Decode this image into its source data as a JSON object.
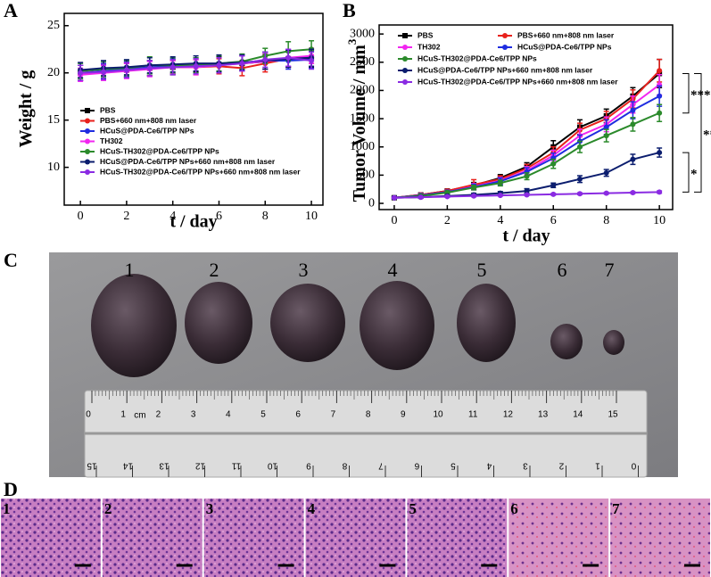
{
  "chart_data": [
    {
      "type": "line",
      "panel_label": "A",
      "x_label": "t / day",
      "y_label": "Weight / g",
      "x": [
        0,
        1,
        2,
        3,
        4,
        5,
        6,
        7,
        8,
        9,
        10
      ],
      "xlim": [
        -0.7,
        10.5
      ],
      "xticks": [
        0,
        2,
        4,
        6,
        8,
        10
      ],
      "ylim": [
        6,
        26.3
      ],
      "yticks": [
        10,
        15,
        20,
        25
      ],
      "series": [
        {
          "name": "PBS",
          "color": "#000000",
          "values": [
            20,
            20.2,
            20.3,
            20.5,
            20.6,
            20.8,
            20.9,
            21,
            21.2,
            21.5,
            21.5
          ],
          "errors": [
            0.8,
            0.8,
            0.7,
            0.8,
            0.8,
            0.7,
            0.8,
            0.8,
            0.8,
            0.9,
            0.9
          ]
        },
        {
          "name": "PBS+660 nm+808 nm laser",
          "color": "#e8211c",
          "values": [
            20,
            20.1,
            20.3,
            20.5,
            20.6,
            20.6,
            20.7,
            20.5,
            21,
            21.5,
            21.8
          ],
          "errors": [
            0.8,
            0.7,
            0.8,
            0.8,
            0.7,
            0.8,
            0.8,
            0.8,
            0.9,
            0.9,
            0.8
          ]
        },
        {
          "name": "HCuS@PDA-Ce6/TPP NPs",
          "color": "#1f2de0",
          "values": [
            20,
            20.2,
            20.4,
            20.6,
            20.7,
            20.8,
            21,
            21.1,
            21.3,
            21.3,
            21.4
          ],
          "errors": [
            0.8,
            0.8,
            0.8,
            0.7,
            0.8,
            0.8,
            0.8,
            0.8,
            0.9,
            0.9,
            0.9
          ]
        },
        {
          "name": "TH302",
          "color": "#f226f0",
          "values": [
            19.8,
            20,
            20.2,
            20.4,
            20.6,
            20.6,
            20.8,
            21,
            21.2,
            21.6,
            21.8
          ],
          "errors": [
            0.7,
            0.8,
            0.8,
            0.8,
            0.7,
            0.8,
            0.8,
            0.8,
            0.8,
            0.9,
            0.8
          ]
        },
        {
          "name": "HCuS-TH302@PDA-Ce6/TPP NPs",
          "color": "#2b8a2b",
          "values": [
            20.2,
            20.4,
            20.5,
            20.8,
            20.8,
            20.8,
            21,
            21.2,
            21.8,
            22.3,
            22.5
          ],
          "errors": [
            0.8,
            0.8,
            0.8,
            0.9,
            0.8,
            0.8,
            0.8,
            0.8,
            0.8,
            1,
            0.9
          ]
        },
        {
          "name": "HCuS@PDA-Ce6/TPP NPs+660 nm+808 nm laser",
          "color": "#0b1d6e",
          "values": [
            20.3,
            20.5,
            20.6,
            20.8,
            20.9,
            21,
            21,
            21.1,
            21.3,
            21.5,
            21.6
          ],
          "errors": [
            0.8,
            0.8,
            0.8,
            0.8,
            0.8,
            0.8,
            0.9,
            0.8,
            0.9,
            0.9,
            0.9
          ]
        },
        {
          "name": "HCuS-TH302@PDA-Ce6/TPP NPs+660 nm+808 nm laser",
          "color": "#8a2be2",
          "values": [
            20,
            20.1,
            20.3,
            20.5,
            20.6,
            20.7,
            20.8,
            21,
            21.4,
            21.6,
            21.3
          ],
          "errors": [
            0.8,
            0.8,
            0.8,
            0.8,
            0.8,
            0.8,
            0.8,
            0.8,
            0.8,
            0.9,
            0.9
          ]
        }
      ]
    },
    {
      "type": "line",
      "panel_label": "B",
      "x_label": "t / day",
      "y_label": "Tumor Volume / mm",
      "y_label_sup": "3",
      "x": [
        0,
        1,
        2,
        3,
        4,
        5,
        6,
        7,
        8,
        9,
        10
      ],
      "xlim": [
        -0.57,
        10.5
      ],
      "xticks": [
        0,
        2,
        4,
        6,
        8,
        10
      ],
      "ylim": [
        -110,
        3160
      ],
      "yticks": [
        0,
        500,
        1000,
        1500,
        2000,
        2500,
        3000
      ],
      "annotations": [
        "***",
        "***",
        "*"
      ],
      "series": [
        {
          "name": "PBS",
          "color": "#000000",
          "values": [
            100,
            150,
            220,
            320,
            450,
            650,
            1000,
            1350,
            1550,
            1900,
            2300
          ],
          "errors": [
            20,
            30,
            30,
            50,
            60,
            70,
            110,
            130,
            120,
            150,
            250
          ]
        },
        {
          "name": "PBS+660 nm+808 nm laser",
          "color": "#e8211c",
          "values": [
            100,
            150,
            220,
            330,
            430,
            620,
            900,
            1300,
            1500,
            1850,
            2350
          ],
          "errors": [
            20,
            30,
            30,
            90,
            60,
            70,
            100,
            120,
            130,
            160,
            200
          ]
        },
        {
          "name": "TH302",
          "color": "#f226f0",
          "values": [
            100,
            140,
            200,
            300,
            400,
            580,
            850,
            1200,
            1400,
            1750,
            2100
          ],
          "errors": [
            20,
            30,
            30,
            50,
            60,
            70,
            90,
            110,
            130,
            150,
            180
          ]
        },
        {
          "name": "HCuS@PDA-Ce6/TPP NPs",
          "color": "#1f2de0",
          "values": [
            100,
            140,
            200,
            290,
            390,
            560,
            800,
            1100,
            1350,
            1650,
            1900
          ],
          "errors": [
            20,
            30,
            30,
            50,
            60,
            70,
            90,
            110,
            130,
            150,
            180
          ]
        },
        {
          "name": "HCuS-TH302@PDA-Ce6/TPP NPs",
          "color": "#2b8a2b",
          "values": [
            100,
            130,
            190,
            280,
            360,
            480,
            700,
            1000,
            1200,
            1400,
            1600
          ],
          "errors": [
            20,
            30,
            30,
            40,
            50,
            60,
            80,
            100,
            110,
            120,
            150
          ]
        },
        {
          "name": "HCuS@PDA-Ce6/TPP NPs+660 nm+808 nm laser",
          "color": "#0b1d6e",
          "values": [
            100,
            110,
            130,
            150,
            180,
            220,
            320,
            430,
            540,
            780,
            900
          ],
          "errors": [
            20,
            20,
            20,
            30,
            30,
            40,
            40,
            60,
            60,
            90,
            80
          ]
        },
        {
          "name": "HCuS-TH302@PDA-Ce6/TPP NPs+660 nm+808 nm laser",
          "color": "#8a2be2",
          "values": [
            100,
            110,
            120,
            130,
            140,
            150,
            160,
            170,
            180,
            190,
            200
          ],
          "errors": [
            10,
            10,
            10,
            10,
            10,
            10,
            15,
            15,
            15,
            15,
            20
          ]
        }
      ]
    }
  ],
  "photo": {
    "panel_label": "C",
    "tumor_labels": [
      "1",
      "2",
      "3",
      "4",
      "5",
      "6",
      "7"
    ],
    "ruler_top": [
      "0",
      "1",
      "2",
      "3",
      "4",
      "5",
      "6",
      "7",
      "8",
      "9",
      "10",
      "11",
      "12",
      "13",
      "14",
      "15"
    ],
    "ruler_unit": "cm",
    "ruler_bottom": [
      "15",
      "14",
      "13",
      "12",
      "11",
      "10",
      "9",
      "8",
      "7",
      "6",
      "5",
      "4",
      "3",
      "2",
      "1",
      "0"
    ]
  },
  "histology": {
    "panel_label": "D",
    "panels": [
      "1",
      "2",
      "3",
      "4",
      "5",
      "6",
      "7"
    ]
  }
}
